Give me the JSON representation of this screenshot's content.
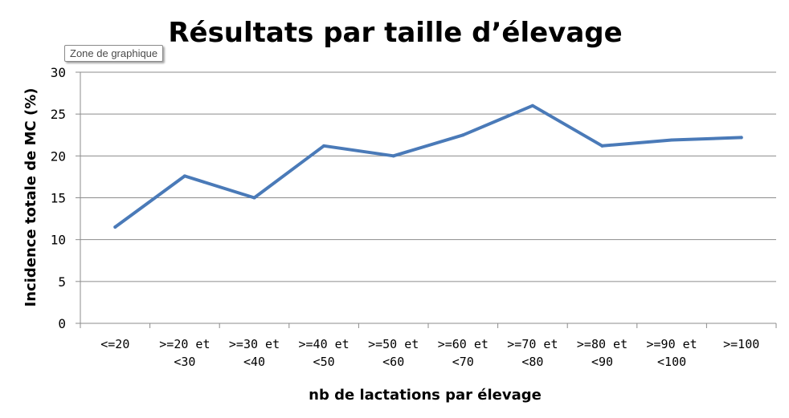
{
  "tooltip": {
    "text": "Zone de graphique"
  },
  "chart_data": {
    "type": "line",
    "title": "Résultats par taille d’élevage",
    "xlabel": "nb de lactations par élevage",
    "ylabel": "Incidence totale de MC (%)",
    "ylim": [
      0,
      30
    ],
    "yticks": [
      0,
      5,
      10,
      15,
      20,
      25,
      30
    ],
    "grid": true,
    "legend": "none",
    "categories": [
      [
        "<=20"
      ],
      [
        ">=20 et",
        "<30"
      ],
      [
        ">=30 et",
        "<40"
      ],
      [
        ">=40 et",
        "<50"
      ],
      [
        ">=50 et",
        "<60"
      ],
      [
        ">=60 et",
        "<70"
      ],
      [
        ">=70 et",
        "<80"
      ],
      [
        ">=80 et",
        "<90"
      ],
      [
        ">=90 et",
        "<100"
      ],
      [
        ">=100"
      ]
    ],
    "series": [
      {
        "values": [
          11.5,
          17.6,
          15.0,
          21.2,
          20.0,
          22.5,
          26.0,
          21.2,
          21.9,
          22.2
        ],
        "color": "#4a7ab8"
      }
    ],
    "colors": {
      "line": "#4a7ab8",
      "grid": "#8c8c8c",
      "axis": "#8c8c8c"
    }
  }
}
